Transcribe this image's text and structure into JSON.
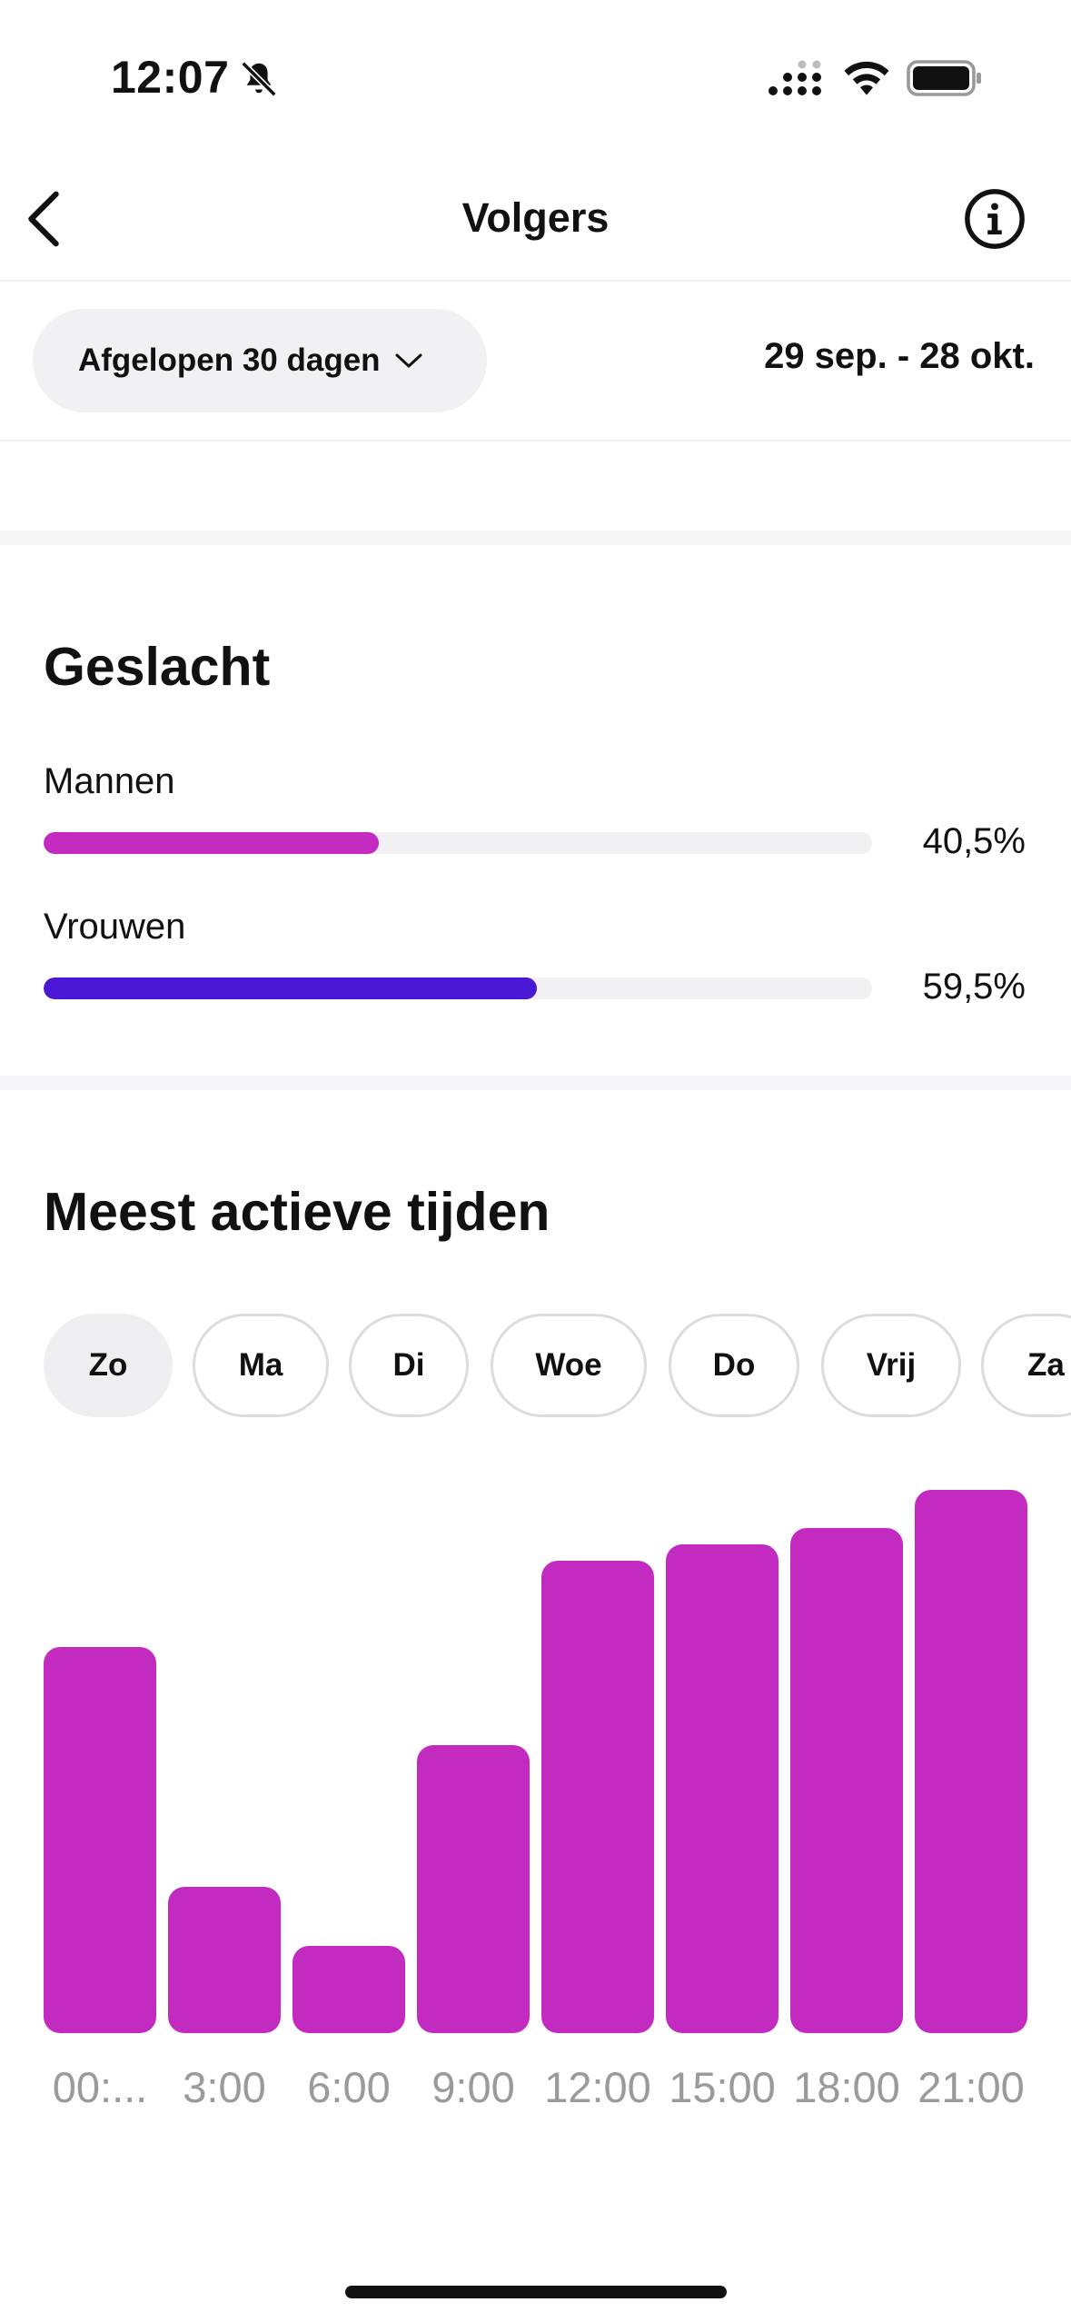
{
  "status_bar": {
    "time": "12:07"
  },
  "nav": {
    "title": "Volgers"
  },
  "filter": {
    "range_label": "Afgelopen 30 dagen",
    "date_range": "29 sep. - 28 okt."
  },
  "gender": {
    "title": "Geslacht",
    "items": [
      {
        "label": "Mannen",
        "value": "40,5%",
        "fraction": 0.405,
        "color": "#c22ac0"
      },
      {
        "label": "Vrouwen",
        "value": "59,5%",
        "fraction": 0.595,
        "color": "#4a17d6"
      }
    ]
  },
  "active_times": {
    "title": "Meest actieve tijden",
    "days": [
      "Zo",
      "Ma",
      "Di",
      "Woe",
      "Do",
      "Vrij",
      "Za"
    ],
    "selected_day": "Zo"
  },
  "chart_data": {
    "type": "bar",
    "categories": [
      "00:...",
      "3:00",
      "6:00",
      "9:00",
      "12:00",
      "15:00",
      "18:00",
      "21:00"
    ],
    "values": [
      71,
      27,
      16,
      53,
      87,
      90,
      93,
      100
    ],
    "ylim": [
      0,
      100
    ],
    "color": "#c22ac0",
    "grid": false
  }
}
